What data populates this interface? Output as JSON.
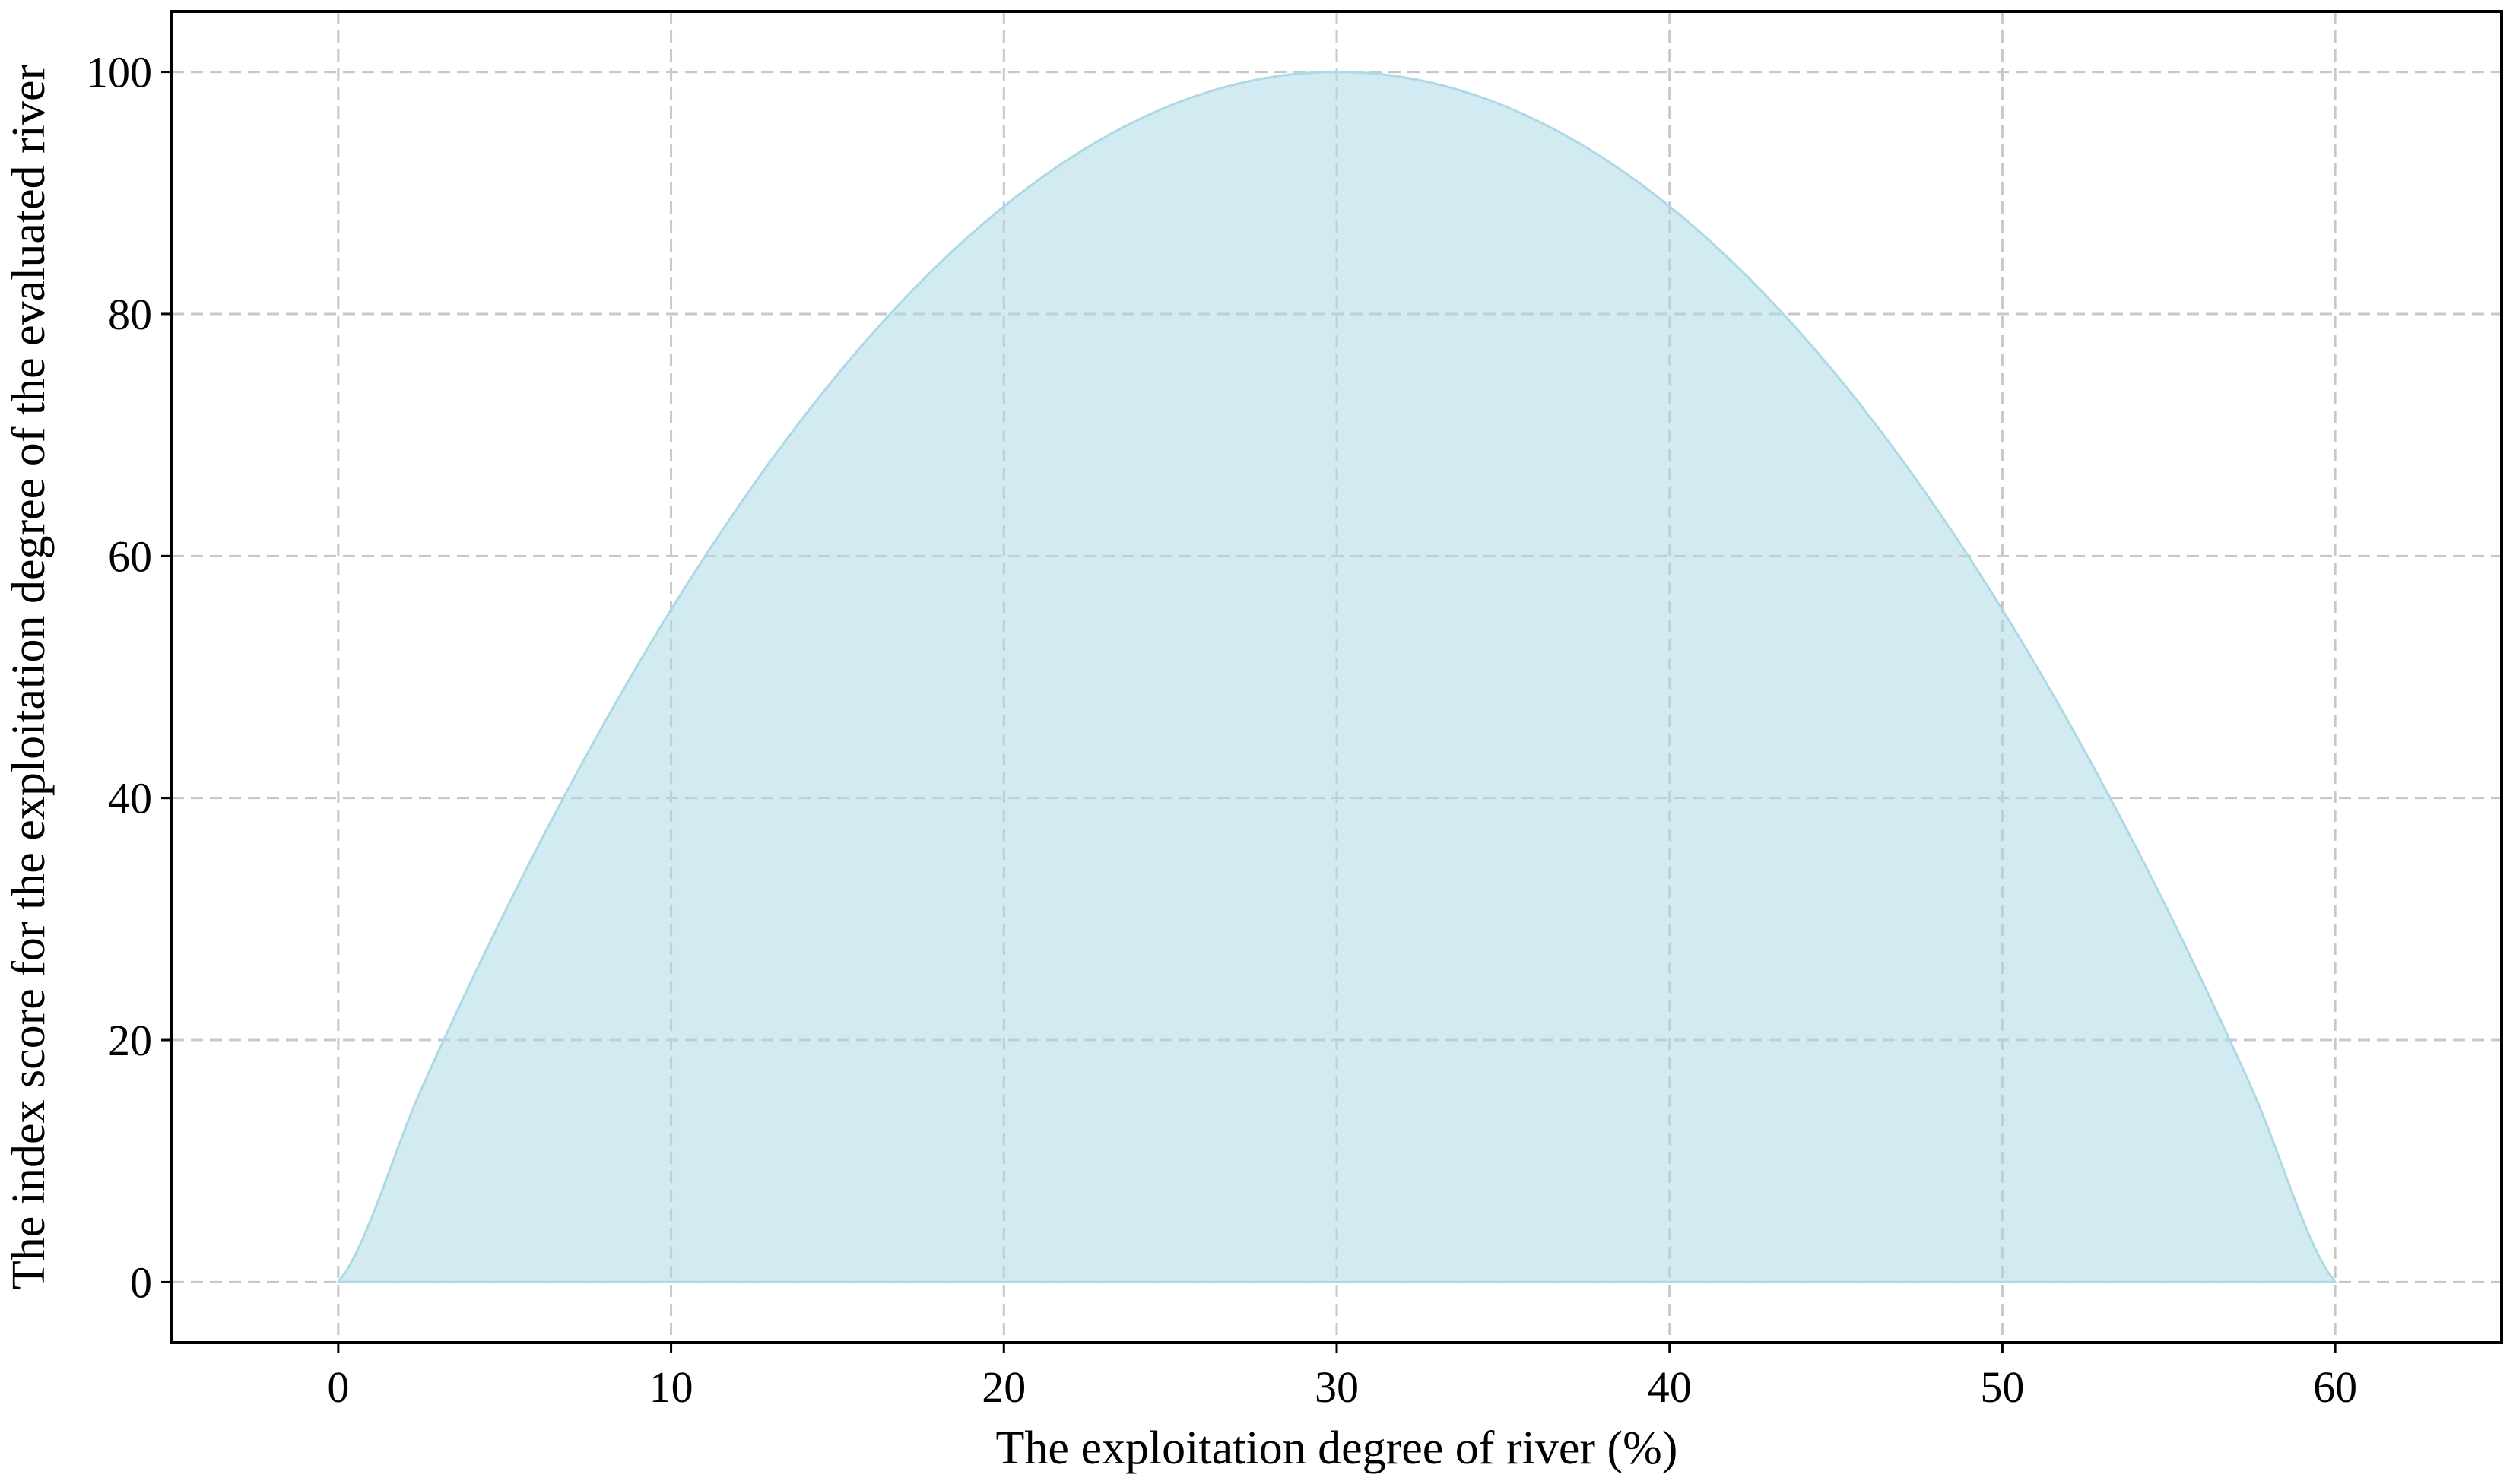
{
  "chart_data": {
    "type": "area",
    "title": "",
    "xlabel": "The exploitation degree of river (%)",
    "ylabel": "The index score for the exploitation degree of the evaluated river",
    "xlim": [
      -5,
      65
    ],
    "ylim": [
      -5,
      105
    ],
    "xticks": [
      0,
      10,
      20,
      30,
      40,
      50,
      60
    ],
    "yticks": [
      0,
      20,
      40,
      60,
      80,
      100
    ],
    "xtick_labels": [
      "0",
      "10",
      "20",
      "30",
      "40",
      "50",
      "60"
    ],
    "ytick_labels": [
      "0",
      "20",
      "40",
      "60",
      "80",
      "100"
    ],
    "grid": true,
    "fill_color": "#add8e6",
    "fill_opacity": 0.55,
    "series": [
      {
        "x": [
          0,
          2.5,
          5,
          7.5,
          10,
          12.5,
          15,
          17.5,
          20,
          22.5,
          25,
          27.5,
          30,
          32.5,
          35,
          37.5,
          40,
          42.5,
          45,
          47.5,
          50,
          52.5,
          55,
          57.5,
          60
        ],
        "y": [
          0,
          15.97,
          30.56,
          43.75,
          55.56,
          65.97,
          75.0,
          82.64,
          88.89,
          93.75,
          97.22,
          99.31,
          100,
          99.31,
          97.22,
          93.75,
          88.89,
          82.64,
          75.0,
          65.97,
          55.56,
          43.75,
          30.56,
          15.97,
          0
        ]
      }
    ]
  }
}
